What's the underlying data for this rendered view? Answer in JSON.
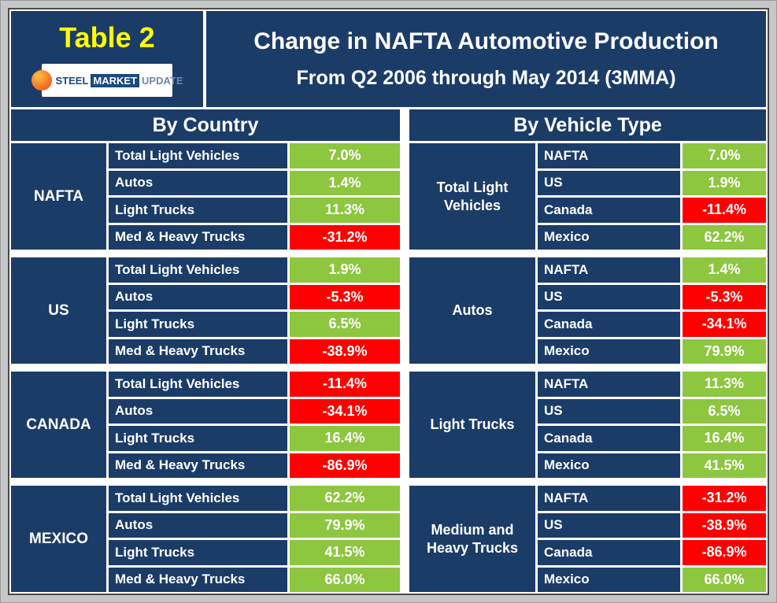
{
  "frame": {
    "table_label": "Table 2",
    "title_line1": "Change in NAFTA Automotive Production",
    "title_line2": "From Q2 2006 through May 2014 (3MMA)",
    "logo": {
      "word1": "STEEL",
      "word2": "MARKET",
      "word3": "UPDATE"
    }
  },
  "colors": {
    "navy": "#1c3c68",
    "green": "#8dc63f",
    "red": "#fe0000",
    "yellow": "#ffff00"
  },
  "by_country": {
    "header": "By Country",
    "groups": [
      {
        "name": "NAFTA",
        "rows": [
          {
            "label": "Total Light Vehicles",
            "value": "7.0%",
            "color": "green"
          },
          {
            "label": "Autos",
            "value": "1.4%",
            "color": "green"
          },
          {
            "label": "Light Trucks",
            "value": "11.3%",
            "color": "green"
          },
          {
            "label": "Med & Heavy Trucks",
            "value": "-31.2%",
            "color": "red"
          }
        ]
      },
      {
        "name": "US",
        "rows": [
          {
            "label": "Total Light Vehicles",
            "value": "1.9%",
            "color": "green"
          },
          {
            "label": "Autos",
            "value": "-5.3%",
            "color": "red"
          },
          {
            "label": "Light Trucks",
            "value": "6.5%",
            "color": "green"
          },
          {
            "label": "Med & Heavy Trucks",
            "value": "-38.9%",
            "color": "red"
          }
        ]
      },
      {
        "name": "CANADA",
        "rows": [
          {
            "label": "Total Light Vehicles",
            "value": "-11.4%",
            "color": "red"
          },
          {
            "label": "Autos",
            "value": "-34.1%",
            "color": "red"
          },
          {
            "label": "Light Trucks",
            "value": "16.4%",
            "color": "green"
          },
          {
            "label": "Med & Heavy Trucks",
            "value": "-86.9%",
            "color": "red"
          }
        ]
      },
      {
        "name": "MEXICO",
        "rows": [
          {
            "label": "Total Light Vehicles",
            "value": "62.2%",
            "color": "green"
          },
          {
            "label": "Autos",
            "value": "79.9%",
            "color": "green"
          },
          {
            "label": "Light Trucks",
            "value": "41.5%",
            "color": "green"
          },
          {
            "label": "Med & Heavy Trucks",
            "value": "66.0%",
            "color": "green"
          }
        ]
      }
    ]
  },
  "by_vehicle_type": {
    "header": "By Vehicle Type",
    "groups": [
      {
        "name": "Total Light Vehicles",
        "rows": [
          {
            "label": "NAFTA",
            "value": "7.0%",
            "color": "green"
          },
          {
            "label": "US",
            "value": "1.9%",
            "color": "green"
          },
          {
            "label": "Canada",
            "value": "-11.4%",
            "color": "red"
          },
          {
            "label": "Mexico",
            "value": "62.2%",
            "color": "green"
          }
        ]
      },
      {
        "name": "Autos",
        "rows": [
          {
            "label": "NAFTA",
            "value": "1.4%",
            "color": "green"
          },
          {
            "label": "US",
            "value": "-5.3%",
            "color": "red"
          },
          {
            "label": "Canada",
            "value": "-34.1%",
            "color": "red"
          },
          {
            "label": "Mexico",
            "value": "79.9%",
            "color": "green"
          }
        ]
      },
      {
        "name": "Light Trucks",
        "rows": [
          {
            "label": "NAFTA",
            "value": "11.3%",
            "color": "green"
          },
          {
            "label": "US",
            "value": "6.5%",
            "color": "green"
          },
          {
            "label": "Canada",
            "value": "16.4%",
            "color": "green"
          },
          {
            "label": "Mexico",
            "value": "41.5%",
            "color": "green"
          }
        ]
      },
      {
        "name": "Medium and Heavy Trucks",
        "rows": [
          {
            "label": "NAFTA",
            "value": "-31.2%",
            "color": "red"
          },
          {
            "label": "US",
            "value": "-38.9%",
            "color": "red"
          },
          {
            "label": "Canada",
            "value": "-86.9%",
            "color": "red"
          },
          {
            "label": "Mexico",
            "value": "66.0%",
            "color": "green"
          }
        ]
      }
    ]
  },
  "chart_data": {
    "type": "table",
    "title": "Change in NAFTA Automotive Production",
    "subtitle": "From Q2 2006 through May 2014 (3MMA)",
    "unit": "percent change",
    "row_categories": [
      "Total Light Vehicles",
      "Autos",
      "Light Trucks",
      "Med & Heavy Trucks"
    ],
    "regions": [
      "NAFTA",
      "US",
      "Canada",
      "Mexico"
    ],
    "values": {
      "NAFTA": {
        "Total Light Vehicles": 7.0,
        "Autos": 1.4,
        "Light Trucks": 11.3,
        "Med & Heavy Trucks": -31.2
      },
      "US": {
        "Total Light Vehicles": 1.9,
        "Autos": -5.3,
        "Light Trucks": 6.5,
        "Med & Heavy Trucks": -38.9
      },
      "Canada": {
        "Total Light Vehicles": -11.4,
        "Autos": -34.1,
        "Light Trucks": 16.4,
        "Med & Heavy Trucks": -86.9
      },
      "Mexico": {
        "Total Light Vehicles": 62.2,
        "Autos": 79.9,
        "Light Trucks": 41.5,
        "Med & Heavy Trucks": 66.0
      }
    }
  }
}
